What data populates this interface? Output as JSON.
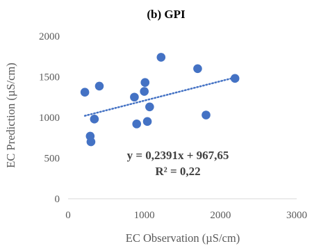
{
  "chart_data": {
    "type": "scatter",
    "title": "(b) GPI",
    "xlabel": "EC Observation (µS/cm)",
    "ylabel": "EC Prediction (µS/cm)",
    "xlim": [
      0,
      3000
    ],
    "ylim": [
      0,
      2000
    ],
    "x_ticks": [
      "0",
      "1000",
      "2000",
      "3000"
    ],
    "y_ticks": [
      "0",
      "500",
      "1000",
      "1500",
      "2000"
    ],
    "grid": false,
    "points": [
      {
        "x": 220,
        "y": 1310
      },
      {
        "x": 290,
        "y": 770
      },
      {
        "x": 300,
        "y": 700
      },
      {
        "x": 345,
        "y": 980
      },
      {
        "x": 410,
        "y": 1385
      },
      {
        "x": 870,
        "y": 1250
      },
      {
        "x": 900,
        "y": 920
      },
      {
        "x": 1000,
        "y": 1320
      },
      {
        "x": 1010,
        "y": 1430
      },
      {
        "x": 1040,
        "y": 950
      },
      {
        "x": 1070,
        "y": 1130
      },
      {
        "x": 1220,
        "y": 1740
      },
      {
        "x": 1700,
        "y": 1600
      },
      {
        "x": 1810,
        "y": 1030
      },
      {
        "x": 2190,
        "y": 1480
      }
    ],
    "trendline": {
      "type": "linear",
      "slope": 0.2391,
      "intercept": 967.65,
      "x_range": [
        220,
        2190
      ],
      "style": "dotted"
    },
    "annotations": {
      "equation": "y = 0,2391x + 967,65",
      "r_squared": "R² = 0,22"
    },
    "colors": {
      "marker": "#4472C4",
      "trendline": "#4472C4",
      "axis": "#d9d9d9",
      "text": "#595959"
    }
  }
}
